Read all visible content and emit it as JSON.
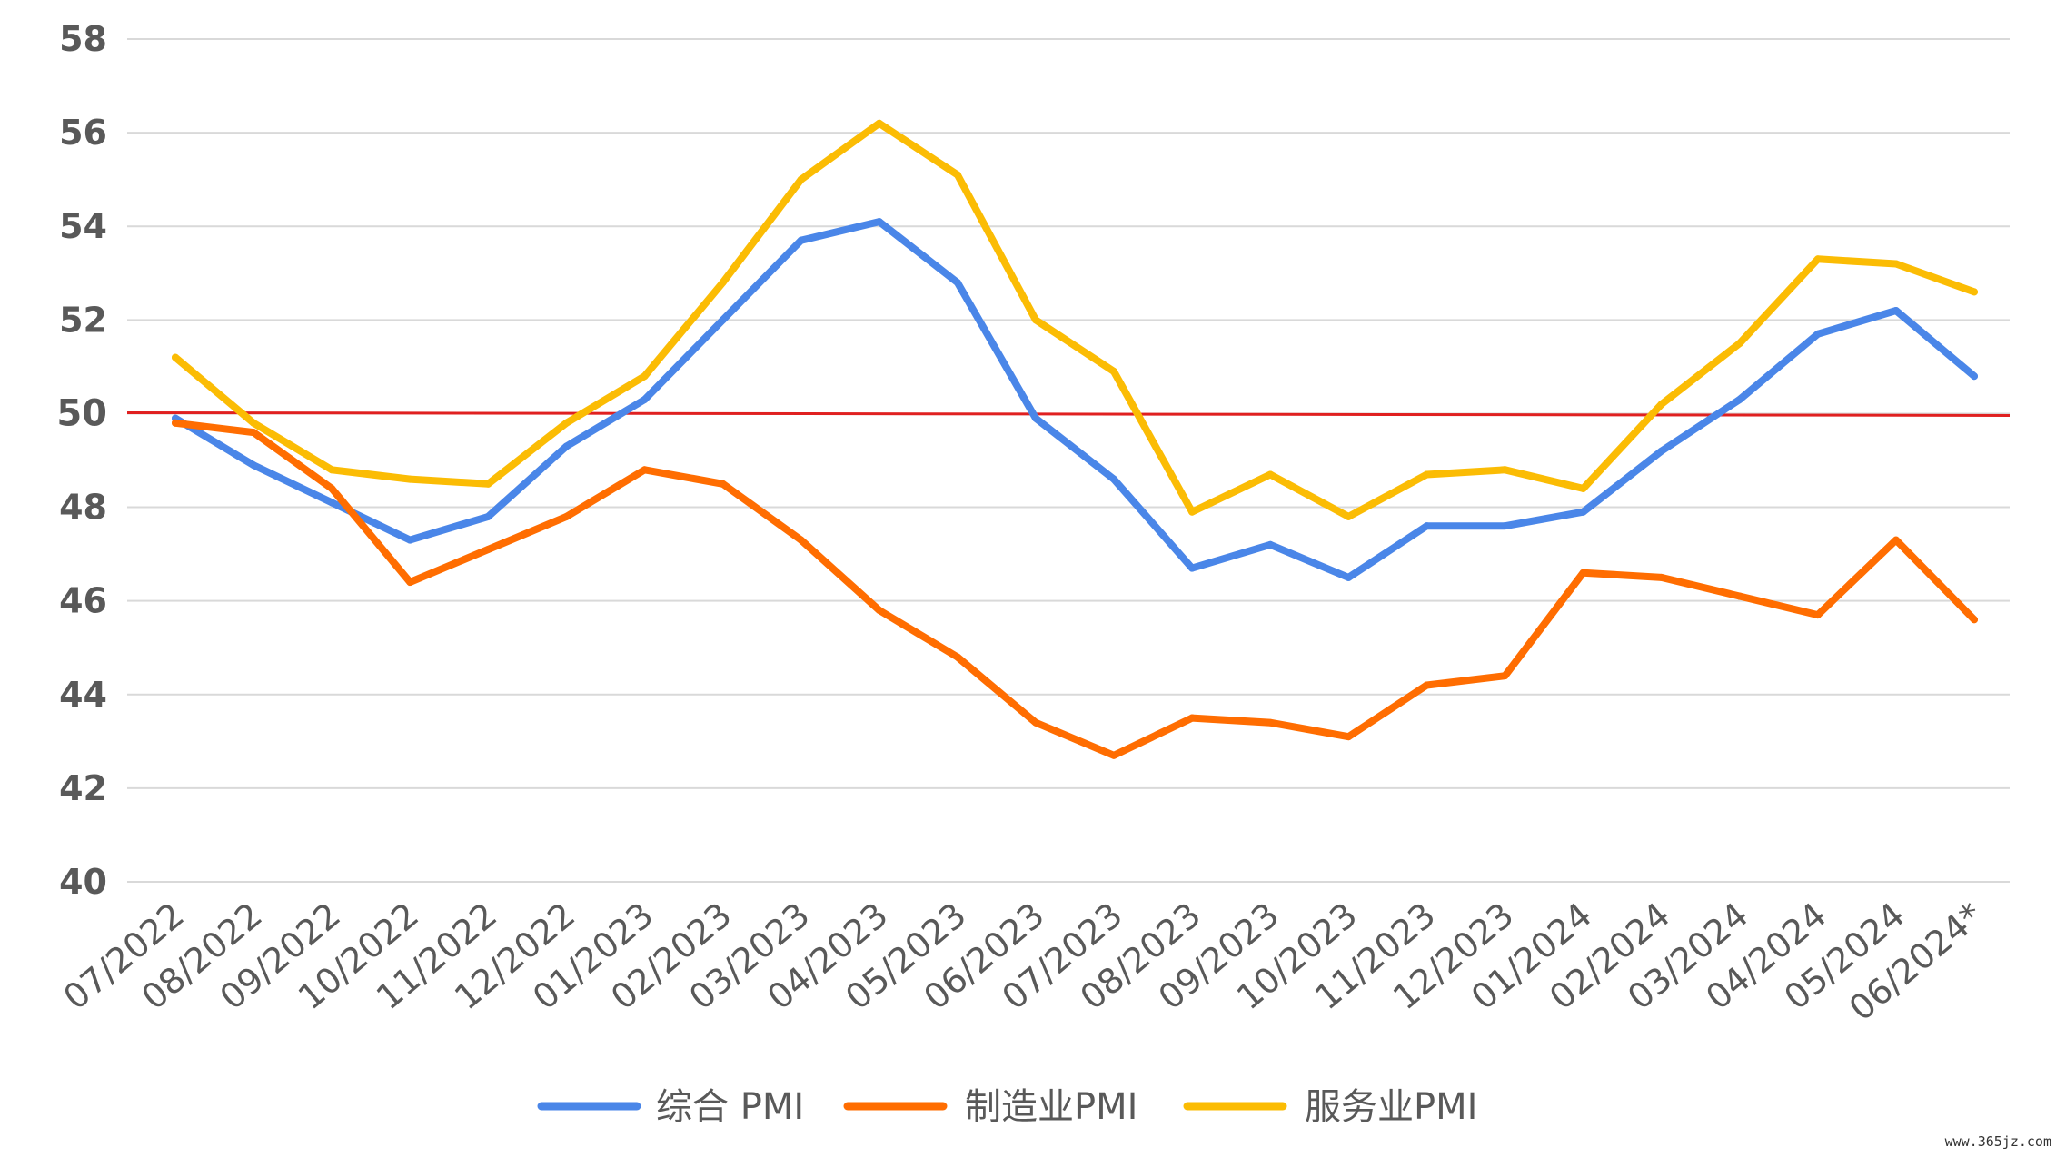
{
  "chart_data": {
    "type": "line",
    "title": "",
    "xlabel": "",
    "ylabel": "",
    "ylim": [
      40,
      58
    ],
    "yticks": [
      "40",
      "42",
      "44",
      "46",
      "48",
      "50",
      "52",
      "54",
      "56",
      "58"
    ],
    "categories": [
      "07/2022",
      "08/2022",
      "09/2022",
      "10/2022",
      "11/2022",
      "12/2022",
      "01/2023",
      "02/2023",
      "03/2023",
      "04/2023",
      "05/2023",
      "06/2023",
      "07/2023",
      "08/2023",
      "09/2023",
      "10/2023",
      "11/2023",
      "12/2023",
      "01/2024",
      "02/2024",
      "03/2024",
      "04/2024",
      "05/2024",
      "06/2024*"
    ],
    "series": [
      {
        "name": "综合 PMI",
        "color": "#4A86E8",
        "values": [
          49.9,
          48.9,
          48.1,
          47.3,
          47.8,
          49.3,
          50.3,
          52.0,
          53.7,
          54.1,
          52.8,
          49.9,
          48.6,
          46.7,
          47.2,
          46.5,
          47.6,
          47.6,
          47.9,
          49.2,
          50.3,
          51.7,
          52.2,
          50.8
        ]
      },
      {
        "name": "制造业PMI",
        "color": "#FF6D01",
        "values": [
          49.8,
          49.6,
          48.4,
          46.4,
          47.1,
          47.8,
          48.8,
          48.5,
          47.3,
          45.8,
          44.8,
          43.4,
          42.7,
          43.5,
          43.4,
          43.1,
          44.2,
          44.4,
          46.6,
          46.5,
          46.1,
          45.7,
          47.3,
          45.6
        ]
      },
      {
        "name": "服务业PMI",
        "color": "#FBBC04",
        "values": [
          51.2,
          49.8,
          48.8,
          48.6,
          48.5,
          49.8,
          50.8,
          52.8,
          55.0,
          56.2,
          55.1,
          52.0,
          50.9,
          47.9,
          48.7,
          47.8,
          48.7,
          48.8,
          48.4,
          50.2,
          51.5,
          53.3,
          53.2,
          52.6
        ]
      }
    ],
    "reference_line": {
      "value": 50,
      "label": "50",
      "color": "#E02020"
    },
    "grid": true,
    "legend": "bottom"
  },
  "watermark": "www.365jz.com"
}
